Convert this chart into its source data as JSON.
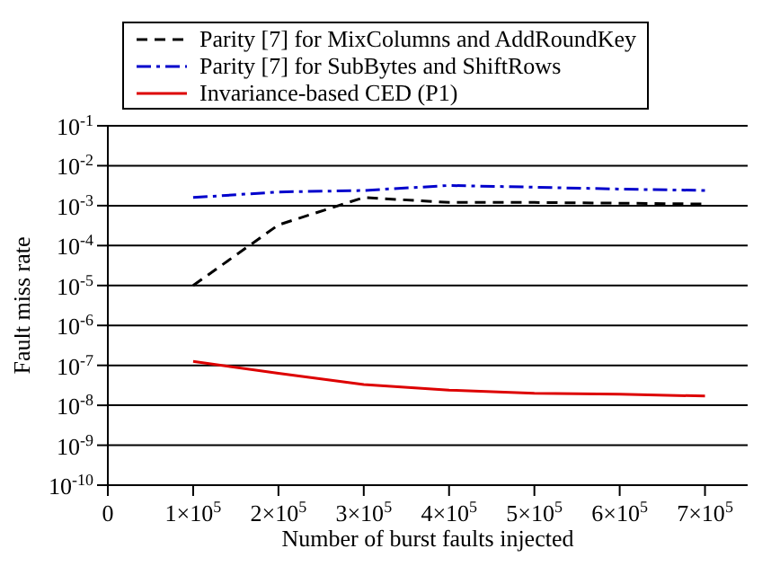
{
  "chart_data": {
    "type": "line",
    "xlabel": "Number of burst faults injected",
    "ylabel": "Fault miss rate",
    "log": "y",
    "grid": "y",
    "legend": "top",
    "marker": "none",
    "x": [
      100000,
      200000,
      300000,
      400000,
      500000,
      600000,
      700000
    ],
    "xlim": [
      0,
      750000
    ],
    "xticks": [
      0,
      {
        "value": 100000,
        "label": "1×10$^{5}$"
      },
      {
        "value": 200000,
        "label": "2×10$^{5}$"
      },
      {
        "value": 300000,
        "label": "3×10$^{5}$"
      },
      {
        "value": 400000,
        "label": "4×10$^{5}$"
      },
      {
        "value": 500000,
        "label": "5×10$^{5}$"
      },
      {
        "value": 600000,
        "label": "6×10$^{5}$"
      },
      {
        "value": 700000,
        "label": "7×10$^{5}$"
      }
    ],
    "ylim": [
      1e-10,
      0.1
    ],
    "yticks": [
      {
        "value": 1e-10,
        "label": "10$^{-10}$"
      },
      {
        "value": 1e-09,
        "label": "10$^{-9}$"
      },
      {
        "value": 1e-08,
        "label": "10$^{-8}$"
      },
      {
        "value": 1e-07,
        "label": "10$^{-7}$"
      },
      {
        "value": 1e-06,
        "label": "10$^{-6}$"
      },
      {
        "value": 1e-05,
        "label": "10$^{-5}$"
      },
      {
        "value": 0.0001,
        "label": "10$^{-4}$"
      },
      {
        "value": 0.001,
        "label": "10$^{-3}$"
      },
      {
        "value": 0.01,
        "label": "10$^{-2}$"
      },
      {
        "value": 0.1,
        "label": "10$^{-1}$"
      }
    ],
    "series": [
      {
        "name": "Parity [7] for MixColumns and AddRoundKey",
        "color": "#000000",
        "line_style": "dashed",
        "values": [
          1e-05,
          0.00033,
          0.0016,
          0.0012,
          0.0012,
          0.00115,
          0.0011
        ]
      },
      {
        "name": "Parity [7] for SubBytes and ShiftRows",
        "color": "#0000cc",
        "line_style": "dashdot",
        "values": [
          0.0016,
          0.0022,
          0.0024,
          0.0032,
          0.0029,
          0.0026,
          0.0024
        ]
      },
      {
        "name": "Invariance-based CED (P1)",
        "color": "#dd0000",
        "line_style": "solid",
        "values": [
          1.26e-07,
          6.3e-08,
          3.3e-08,
          2.4e-08,
          2e-08,
          1.9e-08,
          1.7e-08
        ]
      }
    ]
  }
}
